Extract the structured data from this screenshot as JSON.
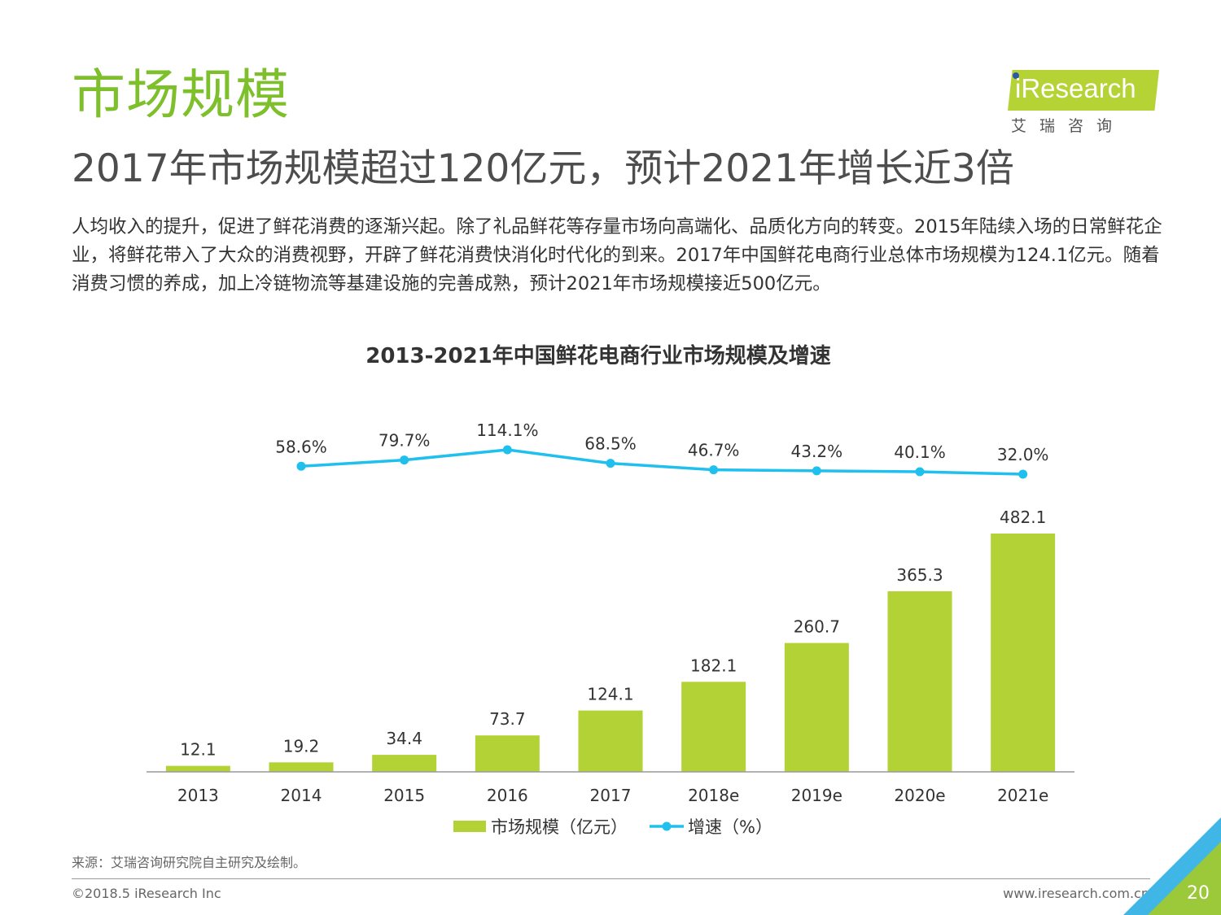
{
  "header": {
    "section_title": "市场规模",
    "subtitle": "2017年市场规模超过120亿元，预计2021年增长近3倍",
    "paragraph": "人均收入的提升，促进了鲜花消费的逐渐兴起。除了礼品鲜花等存量市场向高端化、品质化方向的转变。2015年陆续入场的日常鲜花企业，将鲜花带入了大众的消费视野，开辟了鲜花消费快消化时代化的到来。2017年中国鲜花电商行业总体市场规模为124.1亿元。随着消费习惯的养成，加上冷链物流等基建设施的完善成熟，预计2021年市场规模接近500亿元。"
  },
  "logo": {
    "wordmark": "iResearch",
    "subtext": "艾瑞咨询"
  },
  "chart_data": {
    "type": "bar",
    "title": "2013-2021年中国鲜花电商行业市场规模及增速",
    "categories": [
      "2013",
      "2014",
      "2015",
      "2016",
      "2017",
      "2018e",
      "2019e",
      "2020e",
      "2021e"
    ],
    "series": [
      {
        "name": "市场规模（亿元）",
        "type": "bar",
        "values": [
          12.1,
          19.2,
          34.4,
          73.7,
          124.1,
          182.1,
          260.7,
          365.3,
          482.1
        ],
        "labels": [
          "12.1",
          "19.2",
          "34.4",
          "73.7",
          "124.1",
          "182.1",
          "260.7",
          "365.3",
          "482.1"
        ],
        "color": "#b2d235"
      },
      {
        "name": "增速（%）",
        "type": "line",
        "values": [
          null,
          58.6,
          79.7,
          114.1,
          68.5,
          46.7,
          43.2,
          40.1,
          32.0
        ],
        "labels": [
          "",
          "58.6%",
          "79.7%",
          "114.1%",
          "68.5%",
          "46.7%",
          "43.2%",
          "40.1%",
          "32.0%"
        ],
        "color": "#1fbfee"
      }
    ],
    "legend_position": "bottom",
    "grid": false
  },
  "footer": {
    "source": "来源：艾瑞咨询研究院自主研究及绘制。",
    "copyright": "©2018.5 iResearch Inc",
    "website": "www.iresearch.com.cn",
    "page_number": "20"
  }
}
